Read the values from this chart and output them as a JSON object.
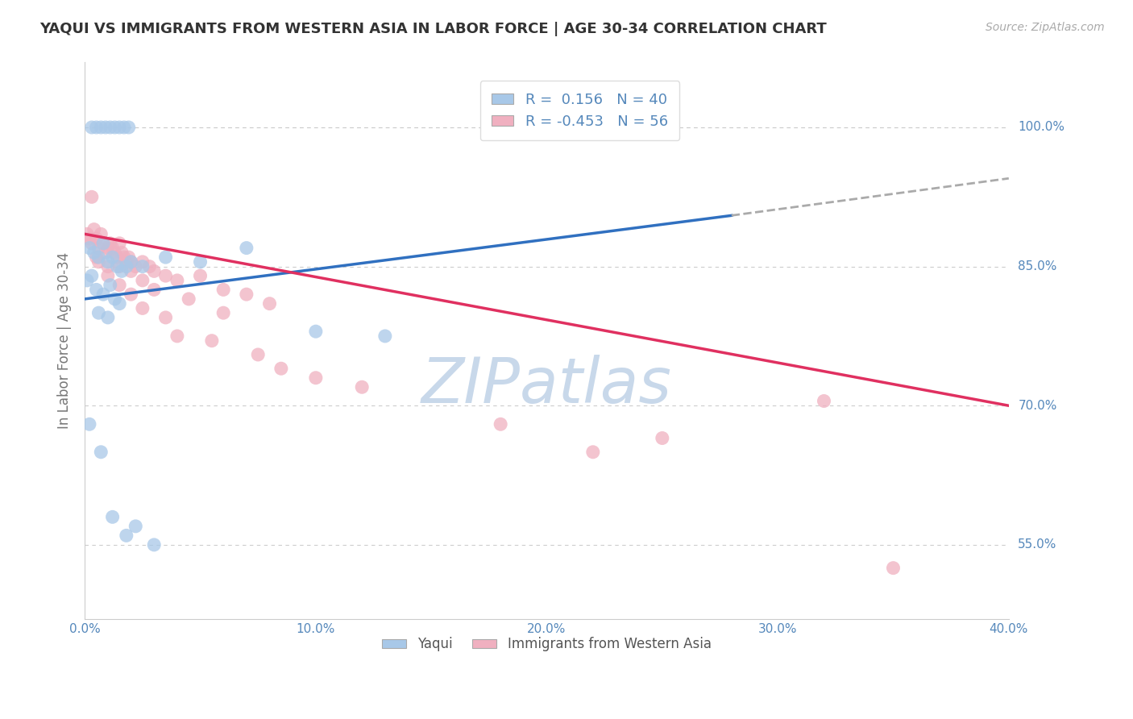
{
  "title": "YAQUI VS IMMIGRANTS FROM WESTERN ASIA IN LABOR FORCE | AGE 30-34 CORRELATION CHART",
  "source": "Source: ZipAtlas.com",
  "ylabel": "In Labor Force | Age 30-34",
  "xlim": [
    0.0,
    40.0
  ],
  "ylim": [
    47.0,
    107.0
  ],
  "xticks": [
    0.0,
    10.0,
    20.0,
    30.0,
    40.0
  ],
  "ytick_values": [
    55.0,
    70.0,
    85.0,
    100.0
  ],
  "blue_R": 0.156,
  "blue_N": 40,
  "pink_R": -0.453,
  "pink_N": 56,
  "blue_color": "#a8c8e8",
  "pink_color": "#f0b0c0",
  "blue_line_color": "#3070c0",
  "pink_line_color": "#e03060",
  "dash_line_color": "#aaaaaa",
  "background_color": "#ffffff",
  "grid_color": "#cccccc",
  "title_color": "#333333",
  "axis_label_color": "#5588bb",
  "blue_scatter_x": [
    0.3,
    0.5,
    0.7,
    0.9,
    1.1,
    1.3,
    1.5,
    1.7,
    1.9,
    0.2,
    0.4,
    0.6,
    0.8,
    1.0,
    1.2,
    1.4,
    1.6,
    1.8,
    2.0,
    0.1,
    0.3,
    0.5,
    0.8,
    1.1,
    1.3,
    0.6,
    1.0,
    1.5,
    2.5,
    3.5,
    5.0,
    7.0,
    10.0,
    13.0,
    0.2,
    0.7,
    1.2,
    1.8,
    2.2,
    3.0
  ],
  "blue_scatter_y": [
    100.0,
    100.0,
    100.0,
    100.0,
    100.0,
    100.0,
    100.0,
    100.0,
    100.0,
    87.0,
    86.5,
    86.0,
    87.5,
    85.5,
    86.0,
    85.0,
    84.5,
    85.0,
    85.5,
    83.5,
    84.0,
    82.5,
    82.0,
    83.0,
    81.5,
    80.0,
    79.5,
    81.0,
    85.0,
    86.0,
    85.5,
    87.0,
    78.0,
    77.5,
    68.0,
    65.0,
    58.0,
    56.0,
    57.0,
    55.0
  ],
  "pink_scatter_x": [
    0.1,
    0.2,
    0.3,
    0.4,
    0.5,
    0.6,
    0.7,
    0.8,
    0.9,
    1.0,
    1.1,
    1.2,
    1.3,
    1.4,
    1.5,
    1.6,
    1.7,
    1.8,
    1.9,
    2.0,
    2.2,
    2.5,
    2.8,
    3.0,
    3.5,
    4.0,
    5.0,
    6.0,
    7.0,
    8.0,
    0.3,
    0.6,
    1.0,
    1.5,
    2.0,
    2.5,
    3.0,
    4.5,
    6.0,
    18.0,
    0.5,
    1.0,
    2.0,
    3.5,
    5.5,
    8.5,
    12.0,
    22.0,
    32.0,
    1.5,
    2.5,
    4.0,
    7.5,
    10.0,
    25.0,
    35.0
  ],
  "pink_scatter_y": [
    88.5,
    88.0,
    87.5,
    89.0,
    88.0,
    87.0,
    88.5,
    87.5,
    86.5,
    87.0,
    87.5,
    87.0,
    86.5,
    86.0,
    87.5,
    86.5,
    86.0,
    85.5,
    86.0,
    85.5,
    85.0,
    85.5,
    85.0,
    84.5,
    84.0,
    83.5,
    84.0,
    82.5,
    82.0,
    81.0,
    92.5,
    85.5,
    84.0,
    85.0,
    84.5,
    83.5,
    82.5,
    81.5,
    80.0,
    68.0,
    86.0,
    85.0,
    82.0,
    79.5,
    77.0,
    74.0,
    72.0,
    65.0,
    70.5,
    83.0,
    80.5,
    77.5,
    75.5,
    73.0,
    66.5,
    52.5
  ],
  "blue_line_x0": 0.0,
  "blue_line_y0": 81.5,
  "blue_line_x1": 28.0,
  "blue_line_y1": 90.5,
  "blue_dash_x0": 28.0,
  "blue_dash_y0": 90.5,
  "blue_dash_x1": 40.0,
  "blue_dash_y1": 94.5,
  "pink_line_x0": 0.0,
  "pink_line_y0": 88.5,
  "pink_line_x1": 40.0,
  "pink_line_y1": 70.0,
  "watermark_text": "ZIPatlas",
  "watermark_color": "#c8d8ea"
}
